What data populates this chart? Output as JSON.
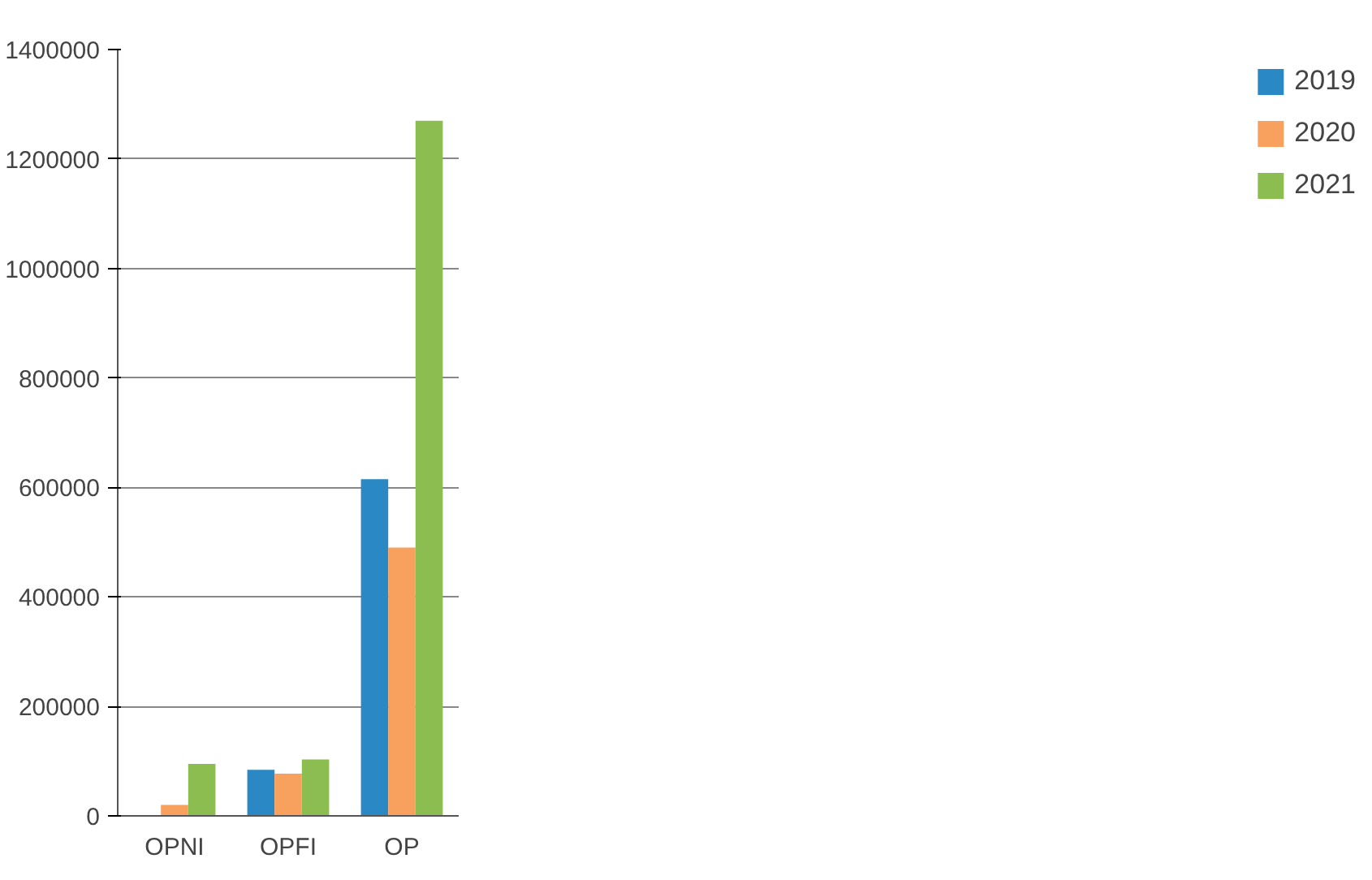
{
  "chart_data": {
    "type": "bar",
    "categories": [
      "OPNI",
      "OPFI",
      "OP"
    ],
    "series": [
      {
        "name": "2019",
        "color": "#2a88c4",
        "values": [
          0,
          84000,
          615000
        ]
      },
      {
        "name": "2020",
        "color": "#f8a15f",
        "values": [
          20000,
          77000,
          490000
        ]
      },
      {
        "name": "2021",
        "color": "#8cbd50",
        "values": [
          95000,
          103000,
          1270000
        ]
      }
    ],
    "ylim": [
      0,
      1400000
    ],
    "yticks": [
      0,
      200000,
      400000,
      600000,
      800000,
      1000000,
      1200000,
      1400000
    ],
    "grid": "y",
    "legend": "right"
  }
}
